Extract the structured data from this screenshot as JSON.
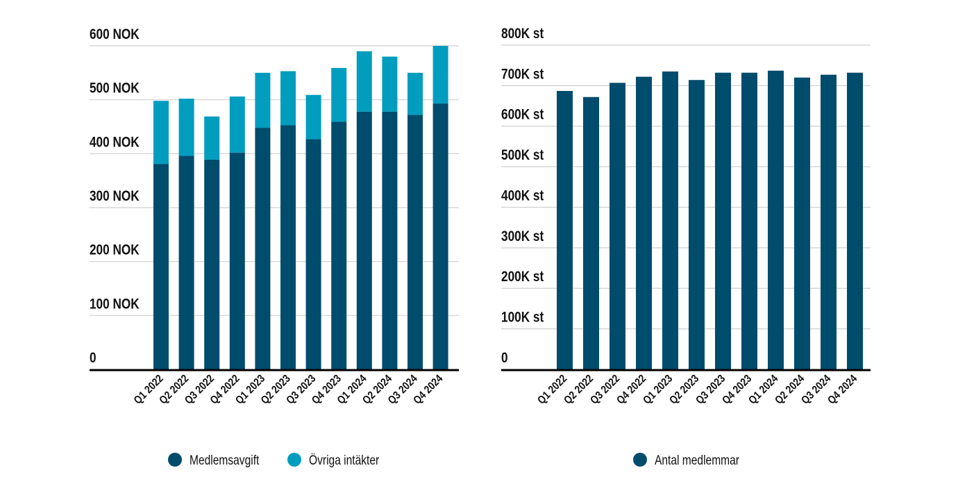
{
  "colors": {
    "medlemsavgift": "#004c6d",
    "ovriga": "#009dbf",
    "members": "#004c6d",
    "grid": "#cfcfcf",
    "axis": "#000000",
    "text": "#111111"
  },
  "chart_data": [
    {
      "type": "bar",
      "stacked": true,
      "title": "",
      "xlabel": "",
      "ylabel": "",
      "ylim": [
        0,
        600
      ],
      "yticks": [
        0,
        100,
        200,
        300,
        400,
        500,
        600
      ],
      "ytick_labels": [
        "0",
        "100 NOK",
        "200 NOK",
        "300 NOK",
        "400 NOK",
        "500 NOK",
        "600 NOK"
      ],
      "grid": true,
      "legend_position": "bottom",
      "categories": [
        "Q1 2022",
        "Q2 2022",
        "Q3 2022",
        "Q4 2022",
        "Q1 2023",
        "Q2 2023",
        "Q3 2023",
        "Q4 2023",
        "Q1 2024",
        "Q2 2024",
        "Q3 2024",
        "Q4 2024"
      ],
      "series": [
        {
          "name": "Medlemsavgift",
          "values": [
            381,
            396,
            389,
            402,
            448,
            453,
            427,
            459,
            478,
            478,
            472,
            493
          ]
        },
        {
          "name": "Övriga intäkter",
          "values": [
            117,
            106,
            80,
            104,
            102,
            100,
            82,
            100,
            112,
            102,
            78,
            107
          ]
        }
      ]
    },
    {
      "type": "bar",
      "stacked": false,
      "title": "",
      "xlabel": "",
      "ylabel": "",
      "ylim": [
        0,
        800000
      ],
      "yticks": [
        0,
        100000,
        200000,
        300000,
        400000,
        500000,
        600000,
        700000,
        800000
      ],
      "ytick_labels": [
        "0",
        "100K st",
        "200K st",
        "300K st",
        "400K st",
        "500K st",
        "600K st",
        "700K st",
        "800K st"
      ],
      "grid": true,
      "legend_position": "bottom",
      "categories": [
        "Q1 2022",
        "Q2 2022",
        "Q3 2022",
        "Q4 2022",
        "Q1 2023",
        "Q2 2023",
        "Q3 2023",
        "Q4 2023",
        "Q1 2024",
        "Q2 2024",
        "Q3 2024",
        "Q4 2024"
      ],
      "series": [
        {
          "name": "Antal medlemmar",
          "values": [
            687000,
            672000,
            707000,
            722000,
            735000,
            714000,
            732000,
            732000,
            737000,
            720000,
            727000,
            732000
          ]
        }
      ]
    }
  ]
}
